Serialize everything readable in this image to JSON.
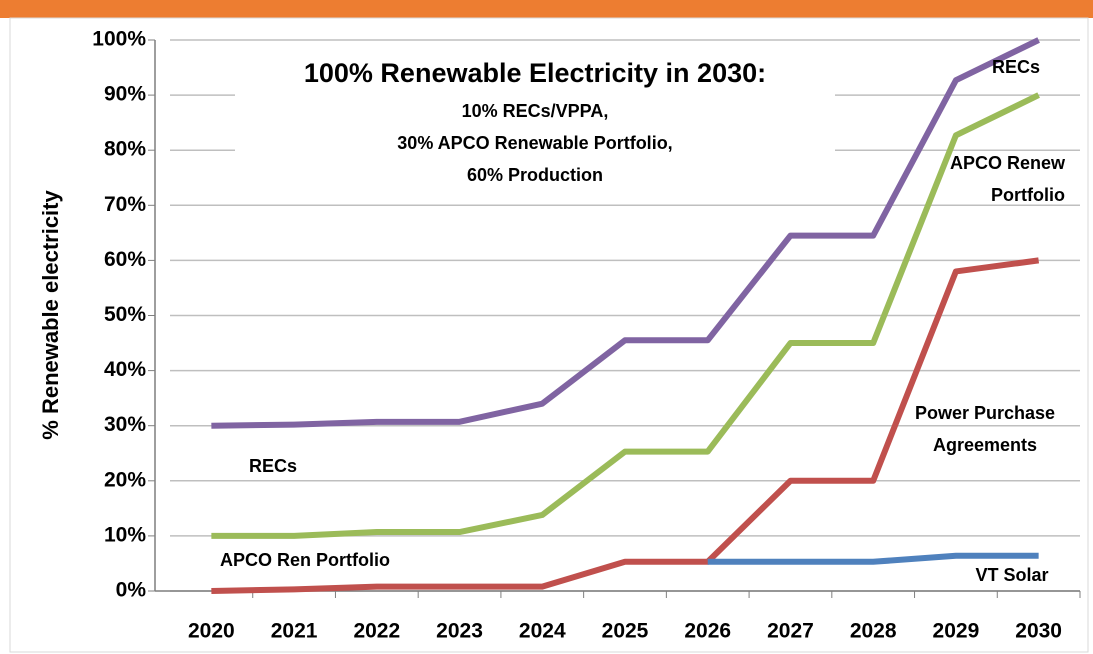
{
  "chart_data": {
    "type": "line",
    "title": "100% Renewable Electricity in 2030:",
    "subtitle": [
      "10% RECs/VPPA,",
      "30% APCO Renewable Portfolio,",
      "60% Production"
    ],
    "y_label": "% Renewable electricity",
    "categories": [
      "2020",
      "2021",
      "2022",
      "2023",
      "2024",
      "2025",
      "2026",
      "2027",
      "2028",
      "2029",
      "2030"
    ],
    "series": [
      {
        "name": [
          "RECs"
        ],
        "color": "#8064a2",
        "values": [
          30,
          30.2,
          30.7,
          30.7,
          34,
          45.5,
          45.5,
          64.5,
          64.5,
          92.7,
          100
        ]
      },
      {
        "name": [
          "APCO Renew",
          "Portfolio"
        ],
        "color": "#9bbb59",
        "values": [
          10,
          10,
          10.7,
          10.7,
          13.8,
          25.3,
          25.3,
          45,
          45,
          82.7,
          90
        ]
      },
      {
        "name": [
          "Power Purchase",
          "Agreements"
        ],
        "color": "#c0504d",
        "values": [
          0,
          0.3,
          0.8,
          0.8,
          0.8,
          5.3,
          5.3,
          20,
          20,
          58,
          60
        ]
      },
      {
        "name": [
          "VT Solar"
        ],
        "color": "#4f81bd",
        "values": [
          null,
          null,
          null,
          null,
          null,
          null,
          5.3,
          5.3,
          5.3,
          6.4,
          6.4
        ]
      }
    ],
    "annotations": [
      "RECs",
      "APCO Ren Portfolio"
    ],
    "ylim": [
      0,
      100
    ],
    "yticks": [
      {
        "value": 0,
        "label": "0%"
      },
      {
        "value": 10,
        "label": "10%"
      },
      {
        "value": 20,
        "label": "20%"
      },
      {
        "value": 30,
        "label": "30%"
      },
      {
        "value": 40,
        "label": "40%"
      },
      {
        "value": 50,
        "label": "50%"
      },
      {
        "value": 60,
        "label": "60%"
      },
      {
        "value": 70,
        "label": "70%"
      },
      {
        "value": 80,
        "label": "80%"
      },
      {
        "value": 90,
        "label": "90%"
      },
      {
        "value": 100,
        "label": "100%"
      }
    ],
    "grid": true
  }
}
